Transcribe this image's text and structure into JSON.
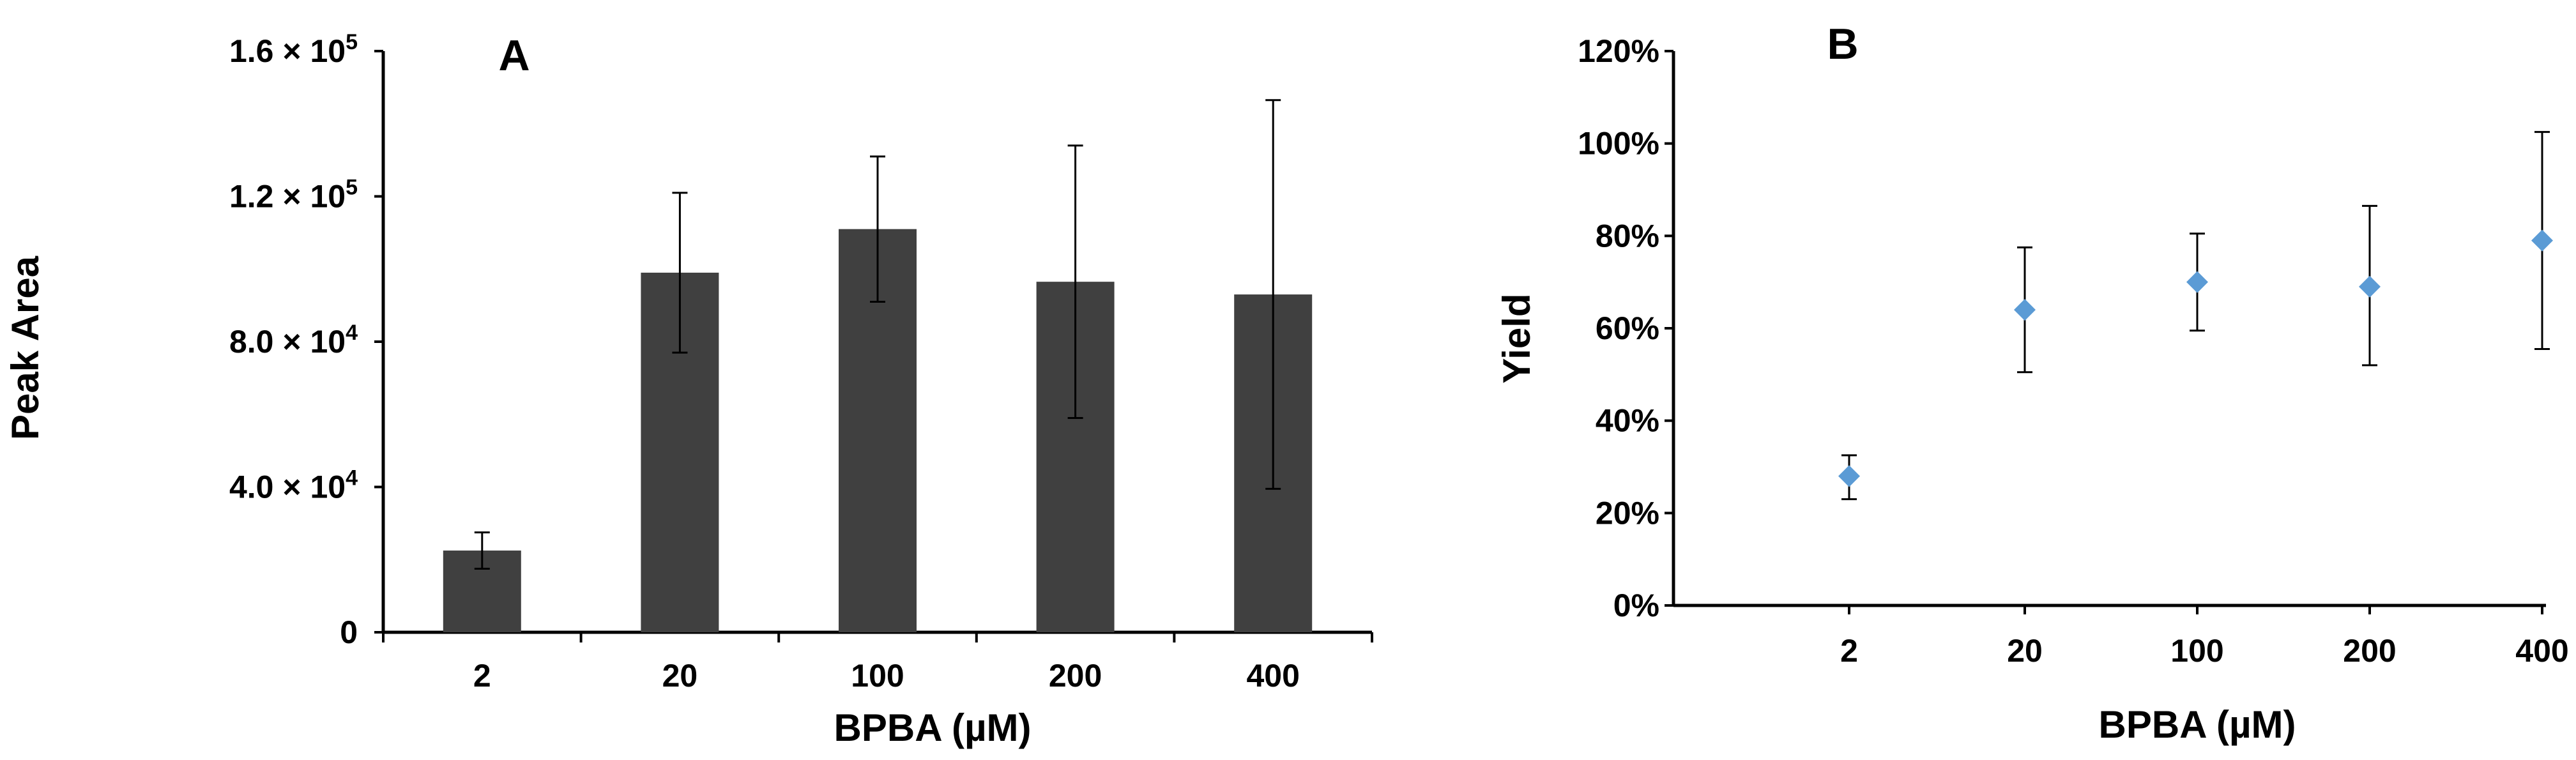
{
  "chart_data": [
    {
      "panel": "A",
      "type": "bar",
      "title": "A",
      "xlabel": "BPBA (µM)",
      "ylabel": "Peak Area",
      "categories": [
        "2",
        "20",
        "100",
        "200",
        "400"
      ],
      "values": [
        22500,
        99000,
        111000,
        96500,
        93000
      ],
      "error": [
        5000,
        22000,
        20000,
        37500,
        53500
      ],
      "ylim": [
        0,
        160000
      ],
      "yticks": [
        0,
        40000,
        80000,
        120000,
        160000
      ],
      "ytick_labels": [
        {
          "mantissa": "0",
          "exp": ""
        },
        {
          "mantissa": "4.0 × 10",
          "exp": "4"
        },
        {
          "mantissa": "8.0 × 10",
          "exp": "4"
        },
        {
          "mantissa": "1.2 × 10",
          "exp": "5"
        },
        {
          "mantissa": "1.6 × 10",
          "exp": "5"
        }
      ],
      "bar_color": "#404040"
    },
    {
      "panel": "B",
      "type": "scatter",
      "title": "B",
      "xlabel": "BPBA (µM)",
      "ylabel": "Yield",
      "categories": [
        "2",
        "20",
        "100",
        "200",
        "400"
      ],
      "values": [
        0.28,
        0.64,
        0.7,
        0.69,
        0.79
      ],
      "error_low": [
        0.05,
        0.135,
        0.105,
        0.17,
        0.235
      ],
      "error_high": [
        0.045,
        0.135,
        0.105,
        0.175,
        0.235
      ],
      "ylim": [
        0,
        1.2
      ],
      "yticks": [
        0,
        0.2,
        0.4,
        0.6,
        0.8,
        1.0,
        1.2
      ],
      "ytick_labels": [
        "0%",
        "20%",
        "40%",
        "60%",
        "80%",
        "100%",
        "120%"
      ],
      "marker_color": "#5b9bd5"
    }
  ]
}
